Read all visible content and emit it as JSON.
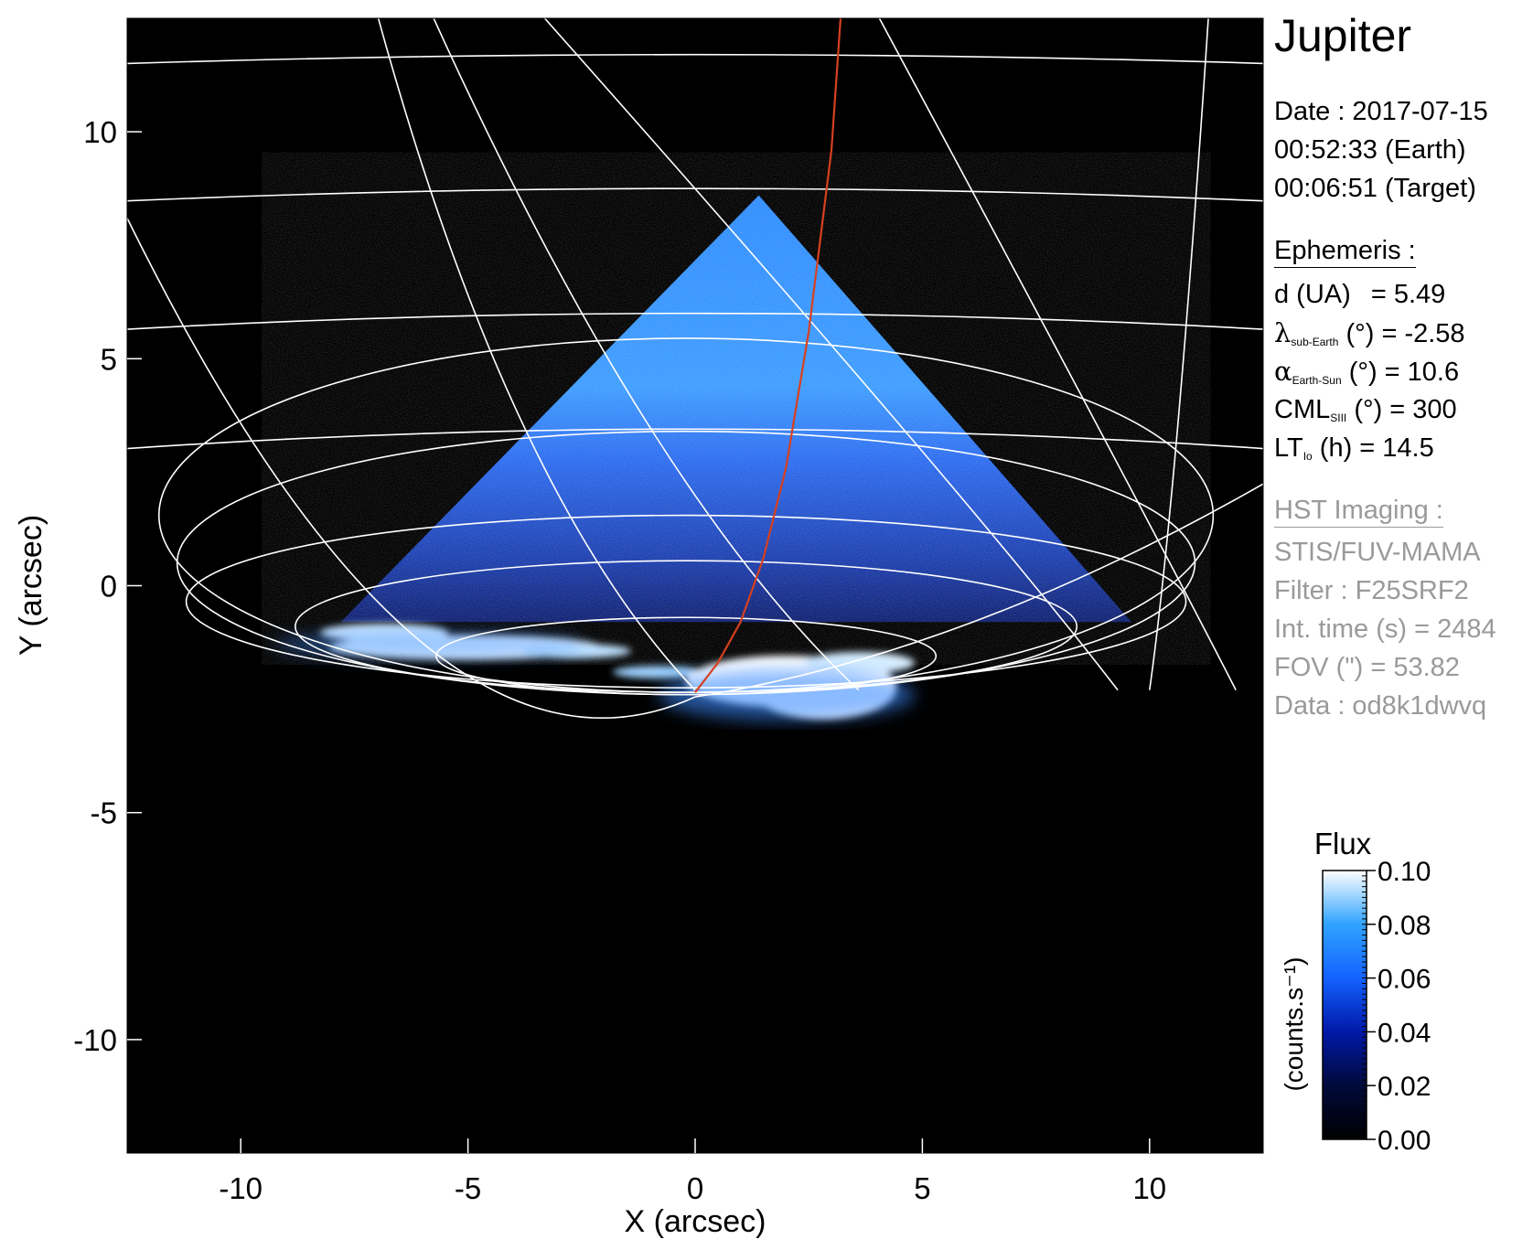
{
  "chart_data": {
    "type": "heatmap",
    "title": "Jupiter",
    "xlabel": "X (arcsec)",
    "ylabel": "Y (arcsec)",
    "xlim": [
      -12.5,
      12.5
    ],
    "ylim": [
      -12.5,
      12.5
    ],
    "x_ticks": [
      -10,
      -5,
      0,
      5,
      10
    ],
    "y_ticks": [
      -10,
      -5,
      0,
      5,
      10
    ],
    "grid_lines": true,
    "field_of_view_triangle": [
      [
        -7.8,
        -0.8
      ],
      [
        1.4,
        8.6
      ],
      [
        9.6,
        -0.8
      ]
    ],
    "reference_curve": {
      "color": "#d7401f",
      "x": [
        0.0,
        0.5,
        1.0,
        1.5,
        2.0,
        2.5,
        3.0,
        3.2
      ],
      "y": [
        -2.35,
        -1.7,
        -0.8,
        0.6,
        2.6,
        5.6,
        9.6,
        12.5
      ]
    },
    "auroral_emission_center": [
      1.5,
      -2.0
    ],
    "colorbar": {
      "title": "Flux",
      "label": "(counts.s⁻¹)",
      "min": 0.0,
      "max": 0.1,
      "ticks": [
        "0.00",
        "0.02",
        "0.04",
        "0.06",
        "0.08",
        "0.10"
      ],
      "colors": [
        "#000000",
        "#000a3a",
        "#0018a8",
        "#1462ff",
        "#2fa3ff",
        "#ffffff"
      ]
    }
  },
  "panel": {
    "target": "Jupiter",
    "date": "Date : 2017-07-15",
    "time_earth": "00:52:33 (Earth)",
    "time_target": "00:06:51 (Target)",
    "ephemeris_header": "Ephemeris :",
    "d_label": "d (UA)",
    "d_value": "=  5.49",
    "lambda_symbol": "λ",
    "lambda_sub": "sub-Earth",
    "lambda_rest": "(°) = -2.58",
    "alpha_symbol": "α",
    "alpha_sub": "Earth-Sun",
    "alpha_rest": "(°) = 10.6",
    "cml_label": "CML",
    "cml_sub": "SIII",
    "cml_rest": "(°) = 300",
    "lt_label": "LT",
    "lt_sub": "Io",
    "lt_rest": "(h) = 14.5",
    "hst_header": "HST Imaging :",
    "instrument": "STIS/FUV-MAMA",
    "filter": "Filter : F25SRF2",
    "int_time": "Int. time (s) = 2484",
    "fov": "FOV (\") = 53.82",
    "data_id": "Data : od8k1dwvq"
  }
}
